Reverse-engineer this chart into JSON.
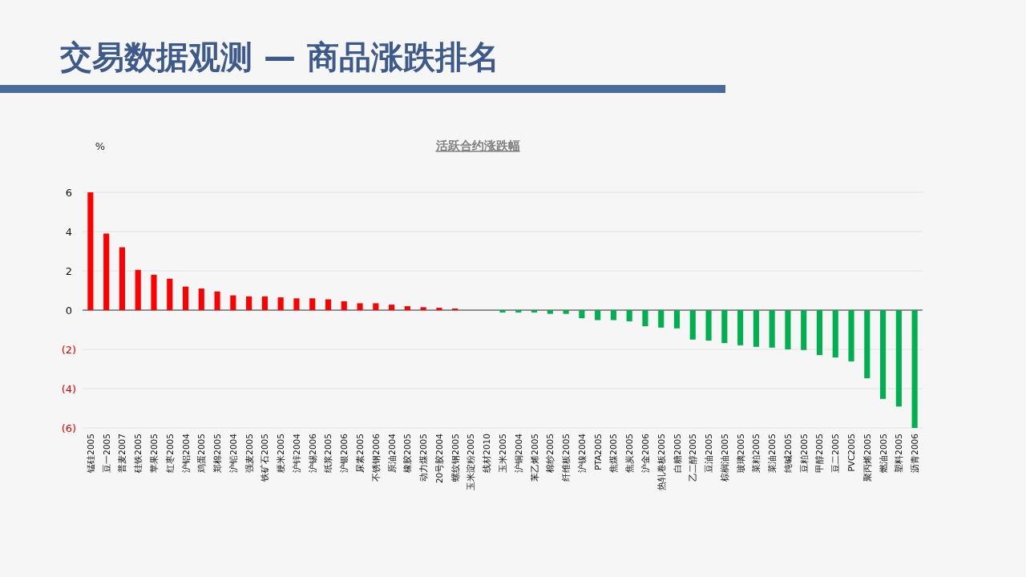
{
  "chart_data": {
    "type": "bar",
    "title": "交易数据观测 — 商品涨跌排名",
    "subtitle": "活跃合约涨跌幅",
    "ylabel": "%",
    "categories": [
      "锰硅2005",
      "豆一2005",
      "普麦2007",
      "硅铁2005",
      "苹果2005",
      "红枣2005",
      "沪铝2004",
      "鸡蛋2005",
      "郑棉2005",
      "沪铅2004",
      "强麦2005",
      "铁矿石2005",
      "粳米2005",
      "沪锌2004",
      "沪锡2006",
      "纸浆2005",
      "沪银2006",
      "尿素2005",
      "不锈钢2006",
      "原油2004",
      "橡胶2005",
      "动力煤2005",
      "20号胶2004",
      "螺纹钢2005",
      "玉米淀粉2005",
      "线材2010",
      "玉米2005",
      "沪铜2004",
      "苯乙烯2005",
      "棉纱2005",
      "纤维板2005",
      "沪镍2004",
      "PTA2005",
      "焦煤2005",
      "焦炭2005",
      "沪金2006",
      "热轧卷板2005",
      "白糖2005",
      "乙二醇2005",
      "豆油2005",
      "棕榈油2005",
      "玻璃2005",
      "菜粕2005",
      "菜油2005",
      "纯碱2005",
      "豆粕2005",
      "甲醇2005",
      "豆二2005",
      "PVC2005",
      "聚丙烯2005",
      "燃油2005",
      "塑料2005",
      "沥青2006"
    ],
    "values": [
      6.0,
      3.9,
      3.2,
      2.05,
      1.8,
      1.6,
      1.2,
      1.1,
      0.95,
      0.75,
      0.7,
      0.7,
      0.65,
      0.6,
      0.6,
      0.55,
      0.45,
      0.35,
      0.35,
      0.28,
      0.2,
      0.15,
      0.12,
      0.08,
      0,
      0,
      -0.12,
      -0.12,
      -0.12,
      -0.19,
      -0.19,
      -0.41,
      -0.51,
      -0.51,
      -0.57,
      -0.82,
      -0.89,
      -0.93,
      -1.5,
      -1.55,
      -1.68,
      -1.79,
      -1.87,
      -1.91,
      -2.0,
      -2.03,
      -2.29,
      -2.41,
      -2.61,
      -3.47,
      -4.52,
      -4.91,
      -6.0
    ],
    "colors": [
      "#ff0000",
      "#ff0000",
      "#ff0000",
      "#ff0000",
      "#ff0000",
      "#ff0000",
      "#ff0000",
      "#ff0000",
      "#ff0000",
      "#ff0000",
      "#ff0000",
      "#ff0000",
      "#ff0000",
      "#ff0000",
      "#ff0000",
      "#ff0000",
      "#ff0000",
      "#ff0000",
      "#ff0000",
      "#ff0000",
      "#ff0000",
      "#ff0000",
      "#ff0000",
      "#ff0000",
      "#ff0000",
      "#00b050",
      "#00b050",
      "#00b050",
      "#00b050",
      "#00b050",
      "#00b050",
      "#00b050",
      "#00b050",
      "#00b050",
      "#00b050",
      "#00b050",
      "#00b050",
      "#00b050",
      "#00b050",
      "#00b050",
      "#00b050",
      "#00b050",
      "#00b050",
      "#00b050",
      "#00b050",
      "#00b050",
      "#00b050",
      "#00b050",
      "#00b050",
      "#00b050",
      "#00b050",
      "#00b050",
      "#00b050"
    ],
    "ylim": [
      -6,
      6
    ],
    "yticks": [
      6,
      4,
      2,
      0,
      {
        "value": -2,
        "label": "(2)"
      },
      {
        "value": -4,
        "label": "(4)"
      },
      {
        "value": -6,
        "label": "(6)"
      }
    ],
    "grid": "y"
  }
}
